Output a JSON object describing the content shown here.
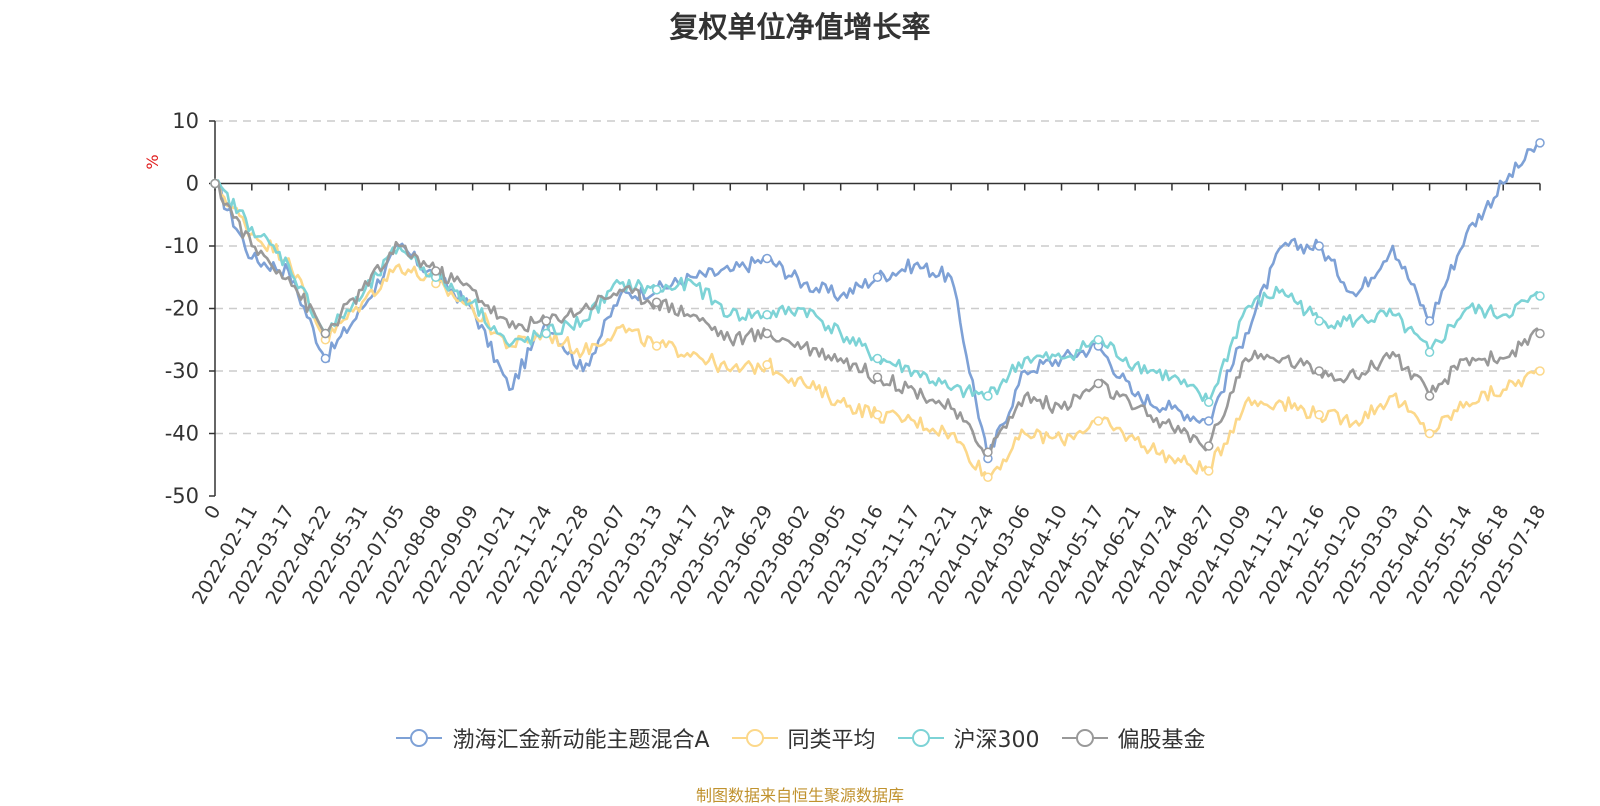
{
  "title": "复权单位净值增长率",
  "footer": "制图数据来自恒生聚源数据库",
  "chart_data": {
    "type": "line",
    "ylabel": "%",
    "ylim": [
      -50,
      10
    ],
    "yticks": [
      10,
      0,
      -10,
      -20,
      -30,
      -40,
      -50
    ],
    "grid": true,
    "legend_position": "bottom-center",
    "x_tick_labels": [
      "0",
      "2022-02-11",
      "2022-03-17",
      "2022-04-22",
      "2022-05-31",
      "2022-07-05",
      "2022-08-08",
      "2022-09-09",
      "2022-10-21",
      "2022-11-24",
      "2022-12-28",
      "2023-02-07",
      "2023-03-13",
      "2023-04-17",
      "2023-05-24",
      "2023-06-29",
      "2023-08-02",
      "2023-09-05",
      "2023-10-16",
      "2023-11-17",
      "2023-12-21",
      "2024-01-24",
      "2024-03-06",
      "2024-04-10",
      "2024-05-17",
      "2024-06-21",
      "2024-07-24",
      "2024-08-27",
      "2024-10-09",
      "2024-11-12",
      "2024-12-16",
      "2025-01-20",
      "2025-03-03",
      "2025-04-07",
      "2025-05-14",
      "2025-06-18",
      "2025-07-18"
    ],
    "x": [
      "0",
      "2022-02-11",
      "2022-03-17",
      "2022-04-22",
      "2022-05-31",
      "2022-07-05",
      "2022-08-08",
      "2022-09-09",
      "2022-10-21",
      "2022-11-24",
      "2022-12-28",
      "2023-02-07",
      "2023-03-13",
      "2023-04-17",
      "2023-05-24",
      "2023-06-29",
      "2023-08-02",
      "2023-09-05",
      "2023-10-16",
      "2023-11-17",
      "2023-12-21",
      "2024-01-24",
      "2024-03-06",
      "2024-04-10",
      "2024-05-17",
      "2024-06-21",
      "2024-07-24",
      "2024-08-27",
      "2024-10-09",
      "2024-11-12",
      "2024-12-16",
      "2025-01-20",
      "2025-03-03",
      "2025-04-07",
      "2025-05-14",
      "2025-06-18",
      "2025-07-18"
    ],
    "series": [
      {
        "name": "渤海汇金新动能主题混合A",
        "color": "#7ea1d6",
        "values": [
          0,
          -12,
          -14,
          -28,
          -20,
          -10,
          -15,
          -20,
          -33,
          -22,
          -30,
          -18,
          -17,
          -15,
          -14,
          -12,
          -16,
          -18,
          -15,
          -13,
          -15,
          -44,
          -30,
          -28,
          -26,
          -34,
          -36,
          -38,
          -24,
          -10,
          -10,
          -18,
          -10,
          -22,
          -8,
          0,
          6.5
        ]
      },
      {
        "name": "同类平均",
        "color": "#fcd88a",
        "values": [
          0,
          -8,
          -12,
          -25,
          -19,
          -13,
          -16,
          -20,
          -26,
          -24,
          -27,
          -23,
          -26,
          -27,
          -30,
          -29,
          -32,
          -35,
          -37,
          -38,
          -40,
          -47,
          -40,
          -41,
          -38,
          -41,
          -44,
          -46,
          -35,
          -35,
          -37,
          -38,
          -34,
          -40,
          -35,
          -33,
          -30
        ]
      },
      {
        "name": "沪深300",
        "color": "#7dd3d6",
        "values": [
          0,
          -7,
          -13,
          -24,
          -18,
          -10,
          -15,
          -19,
          -26,
          -24,
          -22,
          -16,
          -17,
          -16,
          -21,
          -21,
          -20,
          -24,
          -28,
          -30,
          -33,
          -34,
          -28,
          -28,
          -25,
          -29,
          -31,
          -35,
          -20,
          -17,
          -22,
          -22,
          -21,
          -27,
          -20,
          -21,
          -18
        ]
      },
      {
        "name": "偏股基金",
        "color": "#999999",
        "values": [
          0,
          -10,
          -15,
          -24,
          -17,
          -10,
          -14,
          -17,
          -23,
          -22,
          -20,
          -17,
          -19,
          -21,
          -25,
          -24,
          -26,
          -28,
          -31,
          -33,
          -36,
          -43,
          -34,
          -36,
          -32,
          -36,
          -39,
          -42,
          -28,
          -28,
          -30,
          -31,
          -27,
          -34,
          -28,
          -28,
          -24
        ]
      }
    ]
  }
}
